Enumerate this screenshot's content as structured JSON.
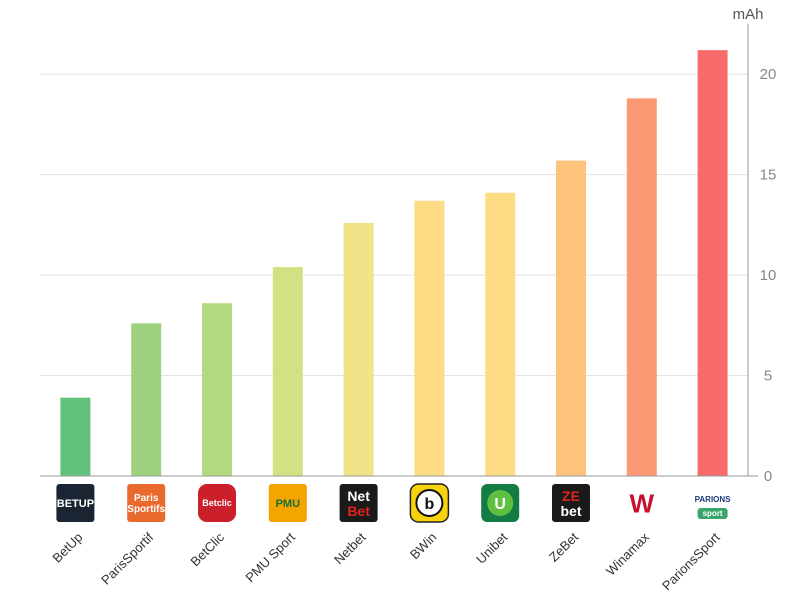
{
  "chart_data": {
    "type": "bar",
    "title": "",
    "xlabel": "",
    "ylabel": "",
    "unit": "mAh",
    "ylim": [
      0,
      22.5
    ],
    "yticks": [
      0,
      5,
      10,
      15,
      20
    ],
    "y_axis_side": "right",
    "grid": true,
    "categories": [
      "BetUp",
      "ParisSportif",
      "BetClic",
      "PMU Sport",
      "Netbet",
      "BWin",
      "Unibet",
      "ZeBet",
      "Winamax",
      "ParionsSport"
    ],
    "values": [
      3.9,
      7.6,
      8.6,
      10.4,
      12.6,
      13.7,
      14.1,
      15.7,
      18.8,
      21.2
    ],
    "colors": [
      "#63c27a",
      "#9fd27f",
      "#b2d880",
      "#d2e184",
      "#f1e488",
      "#fedb85",
      "#fedb85",
      "#fdc27b",
      "#fc9872",
      "#f96b6b"
    ],
    "logos": [
      {
        "name": "betup-logo",
        "bg": "#1b2433",
        "text": "BETUP",
        "fg": "#ffffff"
      },
      {
        "name": "parissportif-logo",
        "bg": "#ea6a2e",
        "text": "Paris Sportifs",
        "fg": "#ffffff"
      },
      {
        "name": "betclic-logo",
        "bg": "#cc1f2c",
        "text": "Betclic",
        "fg": "#ffffff"
      },
      {
        "name": "pmu-logo",
        "bg": "#f4a500",
        "text": "PMU",
        "fg": "#1a6e37"
      },
      {
        "name": "netbet-logo",
        "bg": "#1a1a1a",
        "text": "Net Bet",
        "fg": "#e2231a"
      },
      {
        "name": "bwin-logo",
        "bg": "#f6d30b",
        "text": "b",
        "fg": "#111111"
      },
      {
        "name": "unibet-logo",
        "bg": "#147b45",
        "text": "U",
        "fg": "#ffffff"
      },
      {
        "name": "zebet-logo",
        "bg": "#1a1a1a",
        "text": "ZE bet",
        "fg": "#e2231a"
      },
      {
        "name": "winamax-logo",
        "bg": "#ffffff",
        "text": "W",
        "fg": "#c8102e"
      },
      {
        "name": "parionssport-logo",
        "bg": "#ffffff",
        "text": "PARIONS sport",
        "fg": "#1d3a78"
      }
    ]
  }
}
